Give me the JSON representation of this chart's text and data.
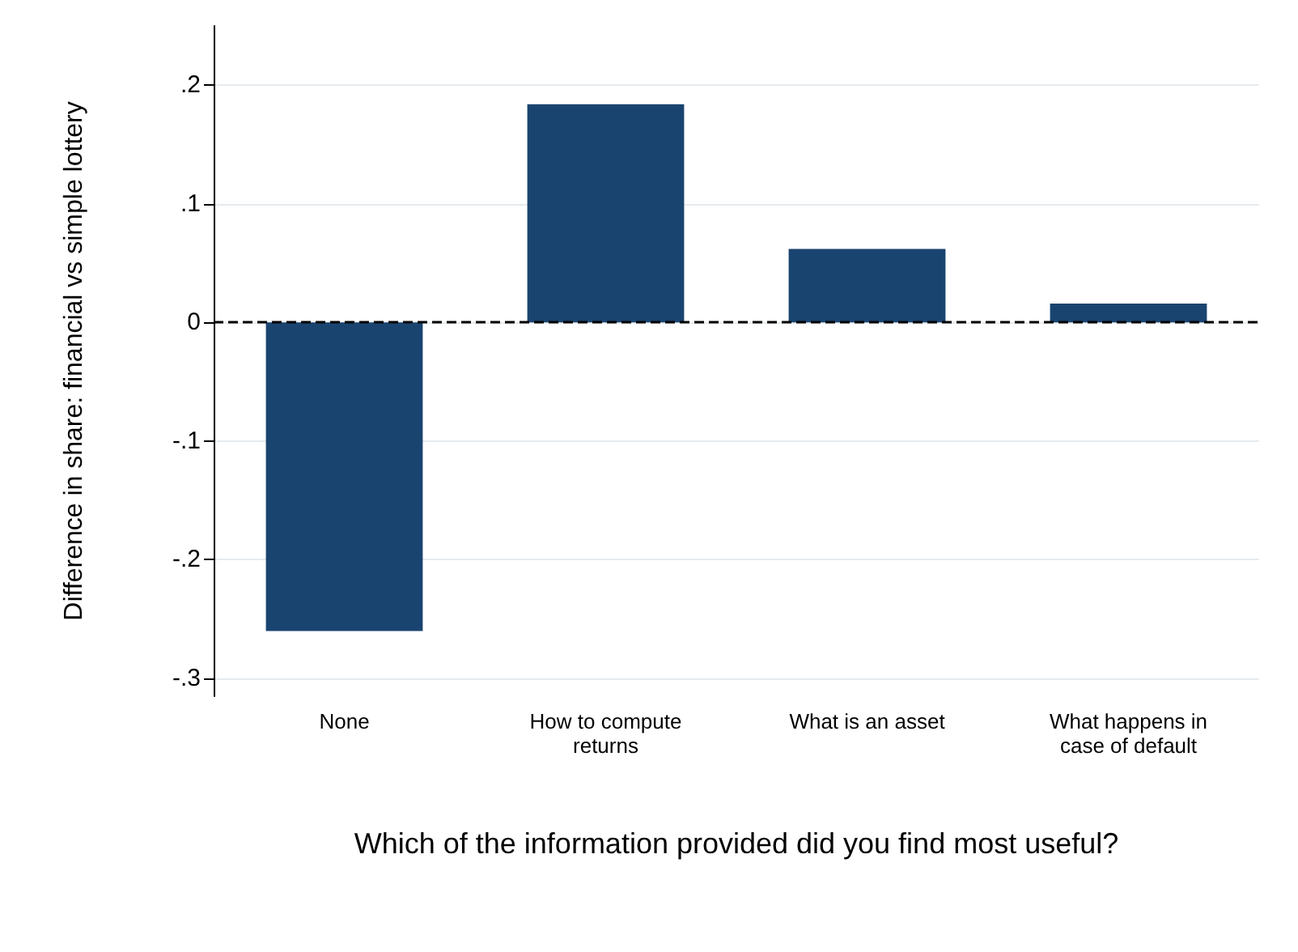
{
  "chart_data": {
    "type": "bar",
    "xlabel": "Which of the information provided did you find most useful?",
    "ylabel": "Difference in share: financial vs simple lottery",
    "categories": [
      "None",
      "How to compute\nreturns",
      "What is an asset",
      "What happens in\ncase of default"
    ],
    "series": [
      {
        "color": "#1a4470",
        "values": [
          -0.26,
          0.184,
          0.062,
          0.016
        ]
      }
    ],
    "ylim": [
      -0.315,
      0.25
    ],
    "yticks": [
      {
        "value": -0.3,
        "label": "-.3"
      },
      {
        "value": -0.2,
        "label": "-.2"
      },
      {
        "value": -0.1,
        "label": "-.1"
      },
      0,
      {
        "value": 0.1,
        "label": ".1"
      },
      {
        "value": 0.2,
        "label": ".2"
      }
    ],
    "grid": "y",
    "ref_lines": [
      {
        "axis": "y",
        "value": 0,
        "color": "#000000",
        "line_style": "dashed"
      }
    ]
  }
}
